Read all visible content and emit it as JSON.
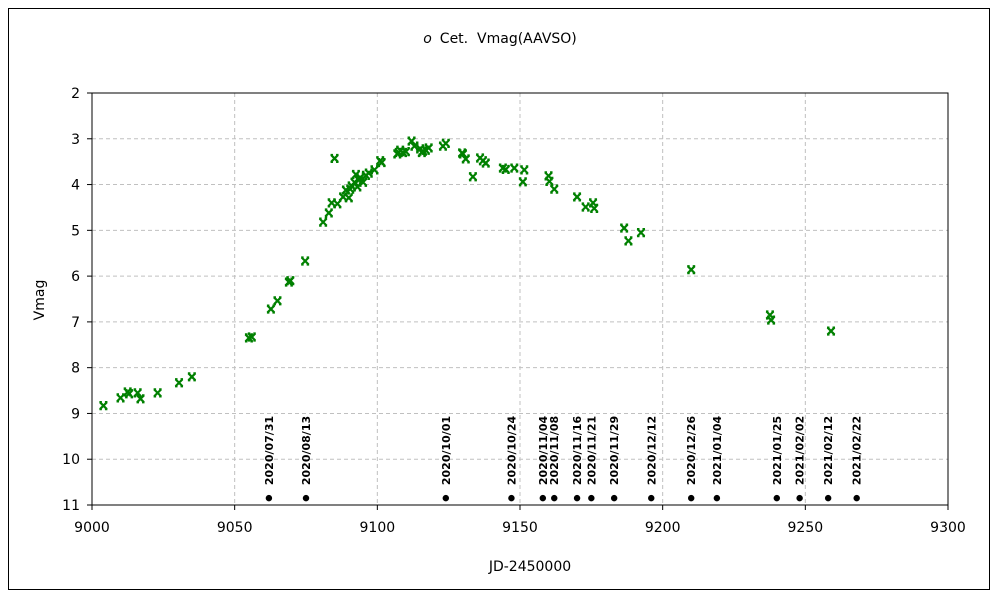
{
  "chart_data": {
    "type": "scatter",
    "title_symbol": "ο",
    "title": "Cet.  Vmag(AAVSO)",
    "xlabel": "JD-2450000",
    "ylabel": "Vmag",
    "xlim": [
      9000,
      9300
    ],
    "ylim": [
      2,
      11
    ],
    "y_inverted": true,
    "grid": true,
    "x_ticks": [
      9000,
      9050,
      9100,
      9150,
      9200,
      9250,
      9300
    ],
    "y_ticks": [
      2,
      3,
      4,
      5,
      6,
      7,
      8,
      9,
      10,
      11
    ],
    "marker_color": "#008000",
    "series": [
      {
        "name": "Vmag",
        "points": [
          [
            9004,
            8.83
          ],
          [
            9010,
            8.66
          ],
          [
            9012.5,
            8.53
          ],
          [
            9013,
            8.57
          ],
          [
            9016,
            8.55
          ],
          [
            9017,
            8.68
          ],
          [
            9023,
            8.55
          ],
          [
            9030.5,
            8.33
          ],
          [
            9035,
            8.2
          ],
          [
            9055,
            7.35
          ],
          [
            9056,
            7.33
          ],
          [
            9062.7,
            6.72
          ],
          [
            9065,
            6.54
          ],
          [
            9069,
            6.13
          ],
          [
            9069.5,
            6.1
          ],
          [
            9074.7,
            5.67
          ],
          [
            9081,
            4.82
          ],
          [
            9083,
            4.62
          ],
          [
            9084,
            4.4
          ],
          [
            9085,
            3.43
          ],
          [
            9086,
            4.42
          ],
          [
            9088,
            4.27
          ],
          [
            9089,
            4.12
          ],
          [
            9090,
            4.29
          ],
          [
            9090.5,
            4.1
          ],
          [
            9091,
            4.03
          ],
          [
            9092,
            3.95
          ],
          [
            9092.5,
            3.78
          ],
          [
            9093,
            4.05
          ],
          [
            9093.5,
            3.9
          ],
          [
            9094,
            3.85
          ],
          [
            9095,
            3.95
          ],
          [
            9096,
            3.8
          ],
          [
            9097,
            3.75
          ],
          [
            9099,
            3.68
          ],
          [
            9101,
            3.48
          ],
          [
            9101.5,
            3.52
          ],
          [
            9107,
            3.33
          ],
          [
            9107.5,
            3.3
          ],
          [
            9108,
            3.25
          ],
          [
            9109,
            3.3
          ],
          [
            9110,
            3.28
          ],
          [
            9112,
            3.05
          ],
          [
            9113,
            3.16
          ],
          [
            9115,
            3.22
          ],
          [
            9115.6,
            3.3
          ],
          [
            9116,
            3.27
          ],
          [
            9117,
            3.25
          ],
          [
            9118,
            3.2
          ],
          [
            9123,
            3.16
          ],
          [
            9124,
            3.1
          ],
          [
            9129.7,
            3.31
          ],
          [
            9130,
            3.33
          ],
          [
            9131,
            3.44
          ],
          [
            9133.5,
            3.83
          ],
          [
            9136,
            3.42
          ],
          [
            9137,
            3.48
          ],
          [
            9138,
            3.53
          ],
          [
            9144,
            3.64
          ],
          [
            9145,
            3.67
          ],
          [
            9148,
            3.64
          ],
          [
            9151,
            3.94
          ],
          [
            9151.5,
            3.68
          ],
          [
            9160,
            3.81
          ],
          [
            9160.3,
            3.93
          ],
          [
            9162,
            4.1
          ],
          [
            9170,
            4.27
          ],
          [
            9173,
            4.49
          ],
          [
            9175.6,
            4.4
          ],
          [
            9176,
            4.52
          ],
          [
            9186.5,
            4.95
          ],
          [
            9188,
            5.23
          ],
          [
            9192.4,
            5.05
          ],
          [
            9210,
            5.86
          ],
          [
            9237.6,
            6.85
          ],
          [
            9238,
            6.96
          ],
          [
            9259,
            7.2
          ]
        ]
      }
    ],
    "annotations": [
      {
        "jd": 9062,
        "label": "2020/07/31"
      },
      {
        "jd": 9075,
        "label": "2020/08/13"
      },
      {
        "jd": 9124,
        "label": "2020/10/01"
      },
      {
        "jd": 9147,
        "label": "2020/10/24"
      },
      {
        "jd": 9158,
        "label": "2020/11/04"
      },
      {
        "jd": 9162,
        "label": "2020/11/08"
      },
      {
        "jd": 9170,
        "label": "2020/11/16"
      },
      {
        "jd": 9175,
        "label": "2020/11/21"
      },
      {
        "jd": 9183,
        "label": "2020/11/29"
      },
      {
        "jd": 9196,
        "label": "2020/12/12"
      },
      {
        "jd": 9210,
        "label": "2020/12/26"
      },
      {
        "jd": 9219,
        "label": "2021/01/04"
      },
      {
        "jd": 9240,
        "label": "2021/01/25"
      },
      {
        "jd": 9248,
        "label": "2021/02/02"
      },
      {
        "jd": 9258,
        "label": "2021/02/12"
      },
      {
        "jd": 9268,
        "label": "2021/02/22"
      }
    ],
    "annotation_marker_mag": 10.85
  }
}
